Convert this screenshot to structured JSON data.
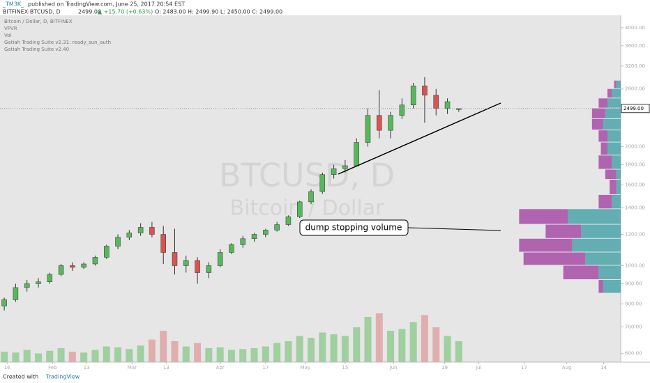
{
  "header": {
    "author": "_TM3K_",
    "published": "published on TradingView.com, June 25, 2017 20:54 EST",
    "symbol": "BITFINEX:BTCUSD, D",
    "price": "2499.00",
    "change": "▲ +15.70 (+0.63%)",
    "ohlc": "O: 2483.00 H: 2499.90 L: 2450.00 C: 2499.00"
  },
  "legend": [
    "Bitcoin / Dollar, D, BITFINEX",
    "VPVR",
    "Vol",
    "Gatiah Trading Suite v2.31: ready_sun_auth",
    "Gatiah Trading Suite v2.40"
  ],
  "footer": {
    "created": "Created with",
    "brand": "TradingView"
  },
  "chart_data": {
    "type": "candlestick",
    "watermark": "BTCUSD, D",
    "watermark_sub": "Bitcoin / Dollar",
    "annotation": "dump stopping volume",
    "log_scale": true,
    "ylim": [
      570,
      4300
    ],
    "xlim": [
      12.5,
      231
    ],
    "yticks": [
      {
        "value": 600,
        "label": "600.00"
      },
      {
        "value": 700,
        "label": "700.00"
      },
      {
        "value": 800,
        "label": "800.00"
      },
      {
        "value": 900,
        "label": "900.00"
      },
      {
        "value": 1000,
        "label": "1000.00"
      },
      {
        "value": 1200,
        "label": "1200.00"
      },
      {
        "value": 1400,
        "label": "1400.00"
      },
      {
        "value": 1600,
        "label": "1600.00"
      },
      {
        "value": 1800,
        "label": "1800.00"
      },
      {
        "value": 2000,
        "label": "2000.00"
      },
      {
        "value": 2800,
        "label": "2800.00"
      },
      {
        "value": 3200,
        "label": "3200.00"
      },
      {
        "value": 3600,
        "label": "3600.00"
      },
      {
        "value": 4000,
        "label": "4000.00"
      }
    ],
    "last_price": {
      "value": 2499,
      "label": "2499.00"
    },
    "xticks": [
      {
        "value": 15,
        "label": "16"
      },
      {
        "value": 31,
        "label": "Feb"
      },
      {
        "value": 43,
        "label": "13"
      },
      {
        "value": 59,
        "label": "Mar"
      },
      {
        "value": 71,
        "label": "13"
      },
      {
        "value": 90,
        "label": "Apr"
      },
      {
        "value": 106,
        "label": "17"
      },
      {
        "value": 120,
        "label": "May"
      },
      {
        "value": 134,
        "label": "15"
      },
      {
        "value": 151,
        "label": "Jun"
      },
      {
        "value": 169,
        "label": "19"
      },
      {
        "value": 181,
        "label": "Jul"
      },
      {
        "value": 197,
        "label": "17"
      },
      {
        "value": 212,
        "label": "Aug"
      },
      {
        "value": 225,
        "label": "14"
      }
    ],
    "up_color": "#56b85a",
    "down_color": "#d9534f",
    "x": [
      14,
      18,
      22,
      26,
      30,
      34,
      38,
      42,
      46,
      50,
      54,
      58,
      62,
      66,
      70,
      74,
      78,
      82,
      86,
      90,
      94,
      98,
      102,
      106,
      110,
      114,
      118,
      122,
      126,
      130,
      134,
      138,
      142,
      146,
      150,
      154,
      158,
      162,
      166,
      170,
      174
    ],
    "open": [
      790,
      820,
      880,
      900,
      910,
      950,
      1000,
      990,
      1010,
      1050,
      1120,
      1180,
      1210,
      1250,
      1200,
      1080,
      1000,
      1030,
      960,
      1000,
      1080,
      1130,
      1170,
      1200,
      1230,
      1270,
      1330,
      1450,
      1540,
      1700,
      1760,
      1790,
      2050,
      2400,
      2200,
      2400,
      2550,
      2850,
      2700,
      2500,
      2483
    ],
    "high": [
      830,
      900,
      920,
      930,
      960,
      1010,
      1020,
      1020,
      1060,
      1130,
      1200,
      1230,
      1280,
      1290,
      1260,
      1240,
      1060,
      1050,
      1020,
      1100,
      1140,
      1190,
      1210,
      1240,
      1290,
      1340,
      1460,
      1560,
      1720,
      1800,
      1850,
      2100,
      2500,
      2780,
      2450,
      2650,
      2900,
      3000,
      2800,
      2650,
      2499.9
    ],
    "low": [
      770,
      810,
      860,
      880,
      900,
      940,
      970,
      980,
      1000,
      1040,
      1100,
      1160,
      1190,
      1180,
      1010,
      950,
      960,
      900,
      930,
      990,
      1070,
      1110,
      1150,
      1180,
      1220,
      1260,
      1320,
      1430,
      1520,
      1660,
      1720,
      1780,
      2000,
      2100,
      2100,
      2350,
      2500,
      2300,
      2400,
      2420,
      2450
    ],
    "close": [
      820,
      880,
      900,
      910,
      950,
      1000,
      990,
      1010,
      1050,
      1120,
      1180,
      1210,
      1250,
      1200,
      1080,
      1000,
      1030,
      960,
      1000,
      1080,
      1130,
      1170,
      1200,
      1230,
      1270,
      1330,
      1450,
      1540,
      1700,
      1760,
      1790,
      2050,
      2400,
      2200,
      2400,
      2550,
      2850,
      2700,
      2500,
      2600,
      2499
    ],
    "volume": [
      60,
      55,
      70,
      50,
      65,
      80,
      60,
      55,
      70,
      90,
      85,
      75,
      95,
      130,
      180,
      120,
      90,
      110,
      80,
      85,
      70,
      75,
      80,
      90,
      110,
      120,
      150,
      140,
      170,
      160,
      150,
      200,
      260,
      280,
      180,
      190,
      230,
      270,
      200,
      150,
      120
    ],
    "vlim": [
      0,
      320
    ],
    "vol_up_color": "#8fc98f",
    "vol_down_color": "#e0a0a0",
    "profile_prices": [
      850,
      920,
      1000,
      1080,
      1170,
      1270,
      1390,
      1510,
      1650,
      1750,
      1900,
      2050,
      2200,
      2350,
      2500,
      2650,
      2800
    ],
    "profile_up": [
      40,
      50,
      80,
      110,
      90,
      120,
      20,
      10,
      10,
      20,
      30,
      30,
      40,
      35,
      30,
      20,
      10
    ],
    "profile_down": [
      10,
      80,
      140,
      120,
      80,
      110,
      30,
      15,
      25,
      30,
      15,
      20,
      25,
      30,
      20,
      10,
      5
    ],
    "plim": [
      0,
      300
    ],
    "profile_up_color": "#4aa3a8",
    "profile_down_color": "#a64ca6"
  }
}
